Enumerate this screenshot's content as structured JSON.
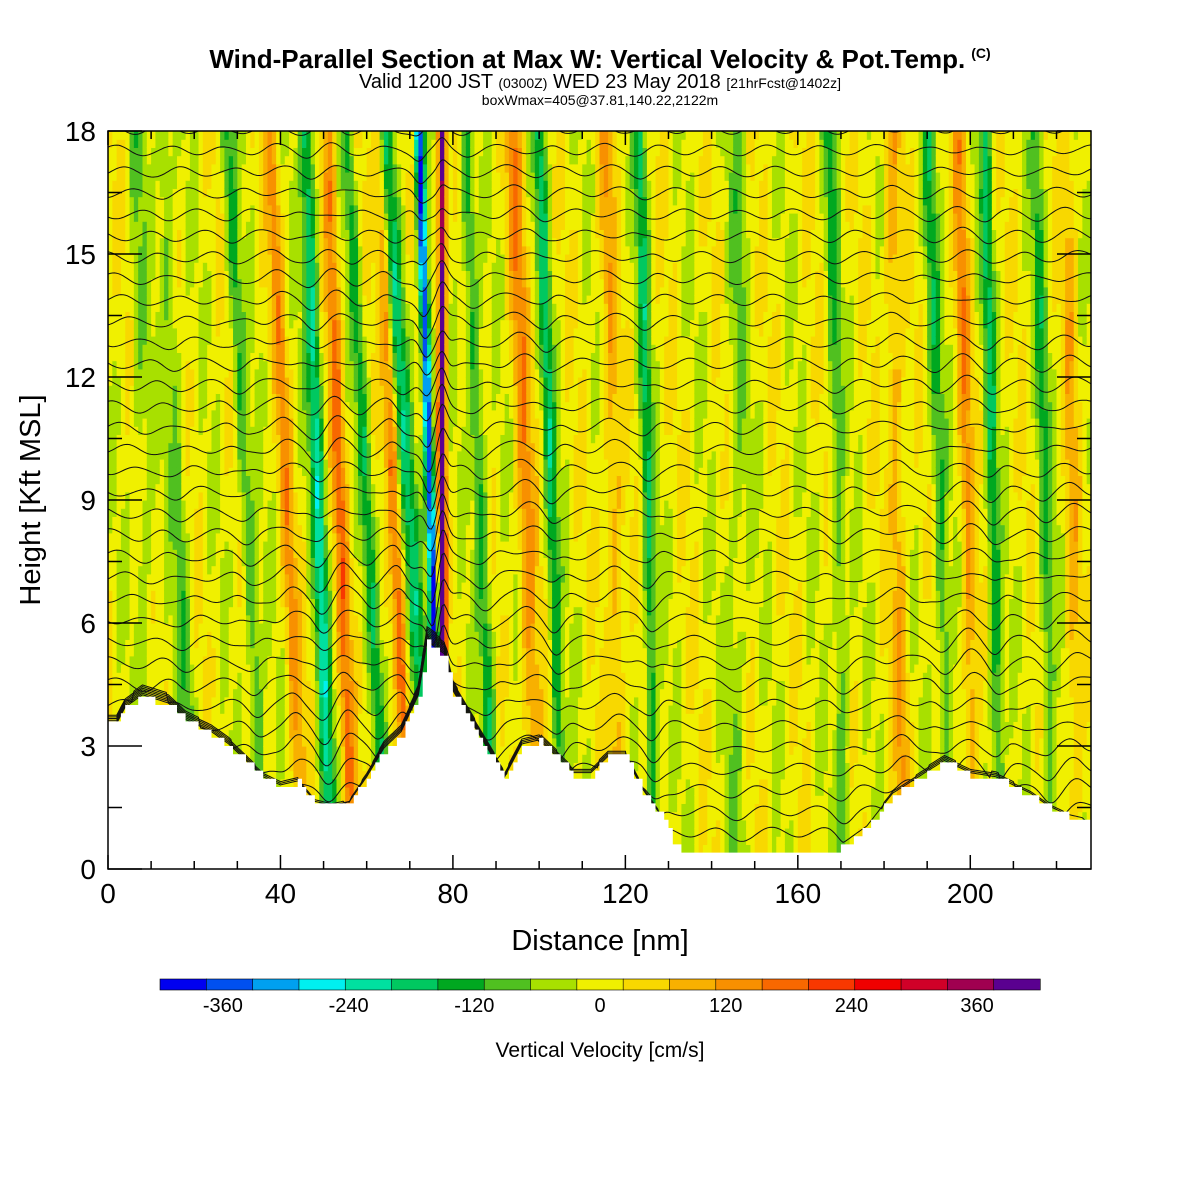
{
  "header": {
    "title": "Wind-Parallel Section at Max W: Vertical Velocity & Pot.Temp.",
    "title_tag": "(C)",
    "valid_a": "Valid 1200 JST",
    "valid_zone": "(0300Z)",
    "valid_b": "WED 23 May 2018",
    "valid_fcst": "[21hrFcst@1402z]",
    "box_info": "boxWmax=405@37.81,140.22,2122m"
  },
  "chart_data": {
    "type": "heatmap",
    "xlabel": "Distance [nm]",
    "ylabel": "Height [Kft MSL]",
    "xlim": [
      0,
      228
    ],
    "ylim": [
      0,
      18
    ],
    "x_ticks": [
      0,
      40,
      80,
      120,
      160,
      200
    ],
    "y_ticks": [
      0,
      3,
      6,
      9,
      12,
      15,
      18
    ],
    "colorbar": {
      "label": "Vertical Velocity [cm/s]",
      "tick_values": [
        -360,
        -240,
        -120,
        0,
        120,
        240,
        360
      ],
      "tick_labels": [
        "-360",
        "-240",
        "-120",
        "0",
        "120",
        "240",
        "360"
      ],
      "range": [
        -420,
        420
      ],
      "colors": [
        "#0000f0",
        "#0050f0",
        "#00a0f0",
        "#00f0f0",
        "#00e0a0",
        "#00c860",
        "#00a820",
        "#50c020",
        "#a8e000",
        "#f0f000",
        "#f8d800",
        "#f8b000",
        "#f89000",
        "#f86800",
        "#f83800",
        "#f00000",
        "#d00028",
        "#a00050",
        "#5a0090"
      ]
    },
    "terrain_kft": [
      [
        0,
        3.5
      ],
      [
        2,
        3.5
      ],
      [
        4,
        3.9
      ],
      [
        8,
        4.2
      ],
      [
        14,
        4.0
      ],
      [
        18,
        3.6
      ],
      [
        24,
        3.3
      ],
      [
        28,
        3.0
      ],
      [
        32,
        2.6
      ],
      [
        36,
        2.2
      ],
      [
        40,
        2.0
      ],
      [
        44,
        2.1
      ],
      [
        48,
        1.6
      ],
      [
        52,
        1.5
      ],
      [
        56,
        1.6
      ],
      [
        60,
        2.2
      ],
      [
        64,
        2.9
      ],
      [
        68,
        3.3
      ],
      [
        72,
        4.2
      ],
      [
        74,
        5.5
      ],
      [
        78,
        5.2
      ],
      [
        80,
        4.3
      ],
      [
        84,
        3.6
      ],
      [
        88,
        2.9
      ],
      [
        92,
        2.2
      ],
      [
        96,
        3.0
      ],
      [
        100,
        3.1
      ],
      [
        104,
        2.7
      ],
      [
        108,
        2.3
      ],
      [
        112,
        2.3
      ],
      [
        116,
        2.7
      ],
      [
        120,
        2.7
      ],
      [
        124,
        1.9
      ],
      [
        128,
        1.3
      ],
      [
        132,
        0.5
      ],
      [
        140,
        0.4
      ],
      [
        150,
        0.4
      ],
      [
        160,
        0.4
      ],
      [
        168,
        0.4
      ],
      [
        176,
        1.0
      ],
      [
        182,
        1.8
      ],
      [
        188,
        2.2
      ],
      [
        194,
        2.6
      ],
      [
        200,
        2.3
      ],
      [
        206,
        2.2
      ],
      [
        210,
        2.0
      ],
      [
        214,
        1.8
      ],
      [
        218,
        1.5
      ],
      [
        222,
        1.3
      ],
      [
        226,
        1.2
      ],
      [
        228,
        1.0
      ]
    ],
    "w_features": [
      {
        "x": 77.5,
        "amplitude": 420,
        "width": 0.9,
        "tilt": 0.0
      },
      {
        "x": 76.0,
        "amplitude": -400,
        "width": 1.1,
        "tilt": 0.3
      },
      {
        "x": 72.0,
        "amplitude": -160,
        "width": 2.0,
        "tilt": 0.6
      },
      {
        "x": 50.0,
        "amplitude": -200,
        "width": 1.6,
        "tilt": 0.3
      },
      {
        "x": 34.0,
        "amplitude": -120,
        "width": 1.6,
        "tilt": 0.5
      },
      {
        "x": 18.0,
        "amplitude": -90,
        "width": 1.8,
        "tilt": 0.4
      },
      {
        "x": 9.0,
        "amplitude": -60,
        "width": 2.0,
        "tilt": 0.2
      },
      {
        "x": 62.0,
        "amplitude": -120,
        "width": 1.4,
        "tilt": 0.5
      },
      {
        "x": 88.0,
        "amplitude": -140,
        "width": 1.6,
        "tilt": 0.4
      },
      {
        "x": 104.0,
        "amplitude": -160,
        "width": 1.4,
        "tilt": 0.3
      },
      {
        "x": 126.0,
        "amplitude": -150,
        "width": 1.4,
        "tilt": 0.2
      },
      {
        "x": 146.0,
        "amplitude": -60,
        "width": 2.2,
        "tilt": 0.0
      },
      {
        "x": 170.0,
        "amplitude": -100,
        "width": 1.6,
        "tilt": 0.2
      },
      {
        "x": 194.0,
        "amplitude": -120,
        "width": 1.6,
        "tilt": 0.3
      },
      {
        "x": 206.0,
        "amplitude": -150,
        "width": 1.4,
        "tilt": 0.2
      },
      {
        "x": 218.0,
        "amplitude": -110,
        "width": 1.5,
        "tilt": 0.2
      },
      {
        "x": 55.0,
        "amplitude": 150,
        "width": 1.6,
        "tilt": 0.3
      },
      {
        "x": 43.0,
        "amplitude": 110,
        "width": 1.6,
        "tilt": 0.4
      },
      {
        "x": 68.0,
        "amplitude": 140,
        "width": 1.4,
        "tilt": 0.4
      },
      {
        "x": 98.0,
        "amplitude": 130,
        "width": 2.0,
        "tilt": 0.3
      },
      {
        "x": 118.0,
        "amplitude": 90,
        "width": 2.0,
        "tilt": 0.2
      },
      {
        "x": 184.0,
        "amplitude": 100,
        "width": 1.8,
        "tilt": 0.2
      },
      {
        "x": 200.0,
        "amplitude": 120,
        "width": 1.6,
        "tilt": 0.2
      },
      {
        "x": 224.0,
        "amplitude": 80,
        "width": 1.6,
        "tilt": 0.1
      }
    ],
    "theta_levels_count": 34
  }
}
